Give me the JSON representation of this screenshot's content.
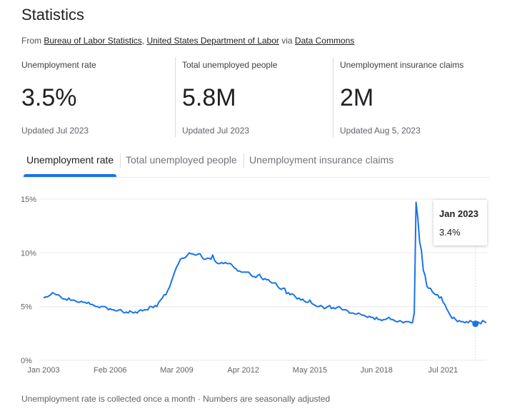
{
  "header": {
    "title": "Statistics",
    "source_prefix": "From",
    "source_links": [
      "Bureau of Labor Statistics",
      "United States Department of Labor",
      "Data Commons"
    ],
    "source_sep": ",",
    "source_via": "via"
  },
  "stats": [
    {
      "label": "Unemployment rate",
      "value": "3.5%",
      "updated": "Updated Jul 2023"
    },
    {
      "label": "Total unemployed people",
      "value": "5.8M",
      "updated": "Updated Jul 2023"
    },
    {
      "label": "Unemployment insurance claims",
      "value": "2M",
      "updated": "Updated Aug 5, 2023"
    }
  ],
  "tabs": [
    {
      "label": "Unemployment rate",
      "active": true
    },
    {
      "label": "Total unemployed people",
      "active": false
    },
    {
      "label": "Unemployment insurance claims",
      "active": false
    }
  ],
  "tooltip": {
    "date": "Jan 2023",
    "value": "3.4%"
  },
  "footnote": "Unemployment rate is collected once a month · Numbers are seasonally adjusted",
  "colors": {
    "line": "#1a73e8",
    "grid": "#e8eaed",
    "accent": "#1a73e8"
  },
  "chart_data": {
    "type": "line",
    "title": "Unemployment rate",
    "xlabel": "",
    "ylabel": "",
    "start": "Jan 2003",
    "frequency": "monthly",
    "ylim": [
      0,
      15
    ],
    "yticks": [
      "0%",
      "5%",
      "10%",
      "15%"
    ],
    "ytick_values": [
      0,
      5,
      10,
      15
    ],
    "xticks": [
      "Jan 2003",
      "Feb 2006",
      "Mar 2009",
      "Apr 2012",
      "May 2015",
      "Jun 2018",
      "Jul 2021"
    ],
    "xtick_month_index": [
      0,
      37,
      74,
      111,
      148,
      185,
      222
    ],
    "grid": true,
    "highlight": {
      "label": "Jan 2023",
      "month_index": 240,
      "value": 3.4
    },
    "series": [
      {
        "name": "Unemployment rate",
        "values": [
          5.8,
          5.9,
          5.9,
          6.0,
          6.1,
          6.3,
          6.2,
          6.1,
          6.1,
          6.0,
          5.8,
          5.7,
          5.7,
          5.6,
          5.8,
          5.6,
          5.6,
          5.6,
          5.5,
          5.4,
          5.4,
          5.5,
          5.4,
          5.4,
          5.3,
          5.4,
          5.2,
          5.2,
          5.1,
          5.0,
          5.0,
          4.9,
          5.0,
          5.0,
          5.0,
          4.9,
          4.7,
          4.8,
          4.7,
          4.7,
          4.6,
          4.6,
          4.7,
          4.7,
          4.5,
          4.4,
          4.5,
          4.4,
          4.6,
          4.5,
          4.4,
          4.5,
          4.4,
          4.6,
          4.7,
          4.6,
          4.7,
          4.7,
          4.7,
          5.0,
          5.0,
          4.9,
          5.1,
          5.0,
          5.4,
          5.6,
          5.8,
          6.1,
          6.1,
          6.5,
          6.8,
          7.3,
          7.8,
          8.3,
          8.7,
          9.0,
          9.4,
          9.5,
          9.5,
          9.6,
          9.8,
          10.0,
          9.9,
          9.9,
          9.8,
          9.8,
          9.9,
          9.9,
          9.6,
          9.4,
          9.4,
          9.5,
          9.5,
          9.4,
          9.8,
          9.3,
          9.1,
          9.0,
          9.0,
          9.1,
          9.0,
          9.1,
          9.0,
          9.0,
          9.0,
          8.8,
          8.6,
          8.5,
          8.3,
          8.3,
          8.2,
          8.2,
          8.2,
          8.2,
          8.2,
          8.0,
          7.8,
          7.8,
          7.7,
          7.9,
          8.0,
          7.7,
          7.5,
          7.6,
          7.5,
          7.5,
          7.3,
          7.2,
          7.2,
          7.2,
          6.9,
          6.7,
          6.6,
          6.7,
          6.7,
          6.2,
          6.3,
          6.1,
          6.2,
          6.1,
          5.9,
          5.7,
          5.8,
          5.6,
          5.7,
          5.5,
          5.4,
          5.4,
          5.6,
          5.3,
          5.2,
          5.1,
          5.0,
          5.0,
          5.1,
          5.0,
          4.8,
          4.9,
          5.0,
          5.1,
          4.8,
          4.9,
          4.8,
          4.9,
          5.0,
          4.9,
          4.7,
          4.7,
          4.7,
          4.6,
          4.4,
          4.4,
          4.4,
          4.3,
          4.3,
          4.4,
          4.3,
          4.2,
          4.2,
          4.1,
          4.0,
          4.1,
          4.0,
          4.0,
          3.8,
          4.0,
          3.8,
          3.8,
          3.7,
          3.8,
          3.8,
          3.9,
          4.0,
          3.8,
          3.8,
          3.7,
          3.6,
          3.6,
          3.7,
          3.6,
          3.5,
          3.6,
          3.6,
          3.6,
          3.5,
          3.5,
          4.4,
          14.7,
          13.2,
          11.0,
          10.2,
          8.4,
          7.9,
          6.9,
          6.7,
          6.7,
          6.4,
          6.2,
          6.1,
          6.1,
          5.8,
          5.9,
          5.4,
          5.2,
          4.8,
          4.5,
          4.2,
          3.9,
          4.0,
          3.8,
          3.6,
          3.7,
          3.6,
          3.6,
          3.5,
          3.6,
          3.5,
          3.7,
          3.6,
          3.5,
          3.4,
          3.6,
          3.5,
          3.4,
          3.7,
          3.6,
          3.5
        ]
      }
    ]
  }
}
